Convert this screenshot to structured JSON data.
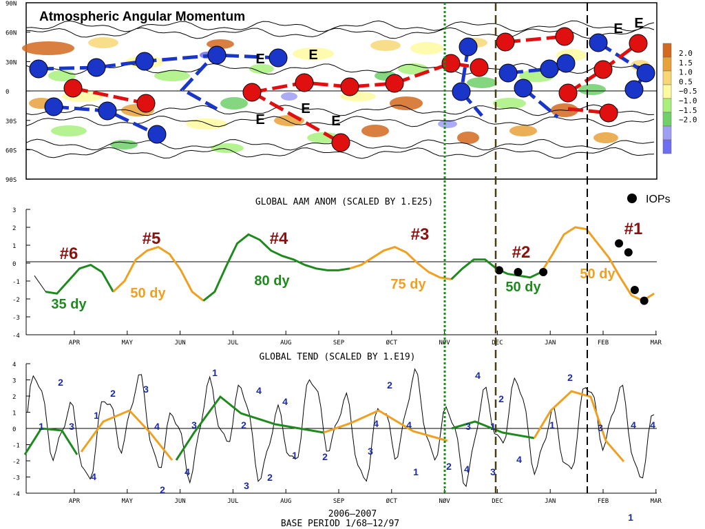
{
  "chart_data": [
    {
      "type": "heatmap",
      "title": "Atmospheric Angular Momentum",
      "ylabels": [
        "90N",
        "60N",
        "30N",
        "0",
        "30S",
        "60S",
        "90S"
      ],
      "colorbar": {
        "labels": [
          "2.0",
          "1.5",
          "1.0",
          "0.5",
          "−0.5",
          "−1.0",
          "−1.5",
          "−2.0"
        ],
        "colors": [
          "#d2691e",
          "#e8a23a",
          "#f7d775",
          "#fffaa0",
          "#a8f07c",
          "#6fd06a",
          "#9e9ef2",
          "#6e6ef0"
        ]
      },
      "easterly_marker": "E",
      "red_color": "#e01010",
      "blue_color": "#1a36c8",
      "legend_label": "IOPs"
    },
    {
      "type": "line",
      "title": "GLOBAL AAM ANOM (SCALED BY 1.E25)",
      "months": [
        "APR",
        "MAY",
        "JUN",
        "JUL",
        "AUG",
        "SEP",
        "ØCT",
        "NØV",
        "DEC",
        "JAN",
        "FEB",
        "MAR"
      ],
      "yticks": [
        "3",
        "2",
        "1",
        "0",
        "-1",
        "-2",
        "-3",
        "-4"
      ],
      "ylim": [
        -4,
        3
      ],
      "series": [
        {
          "values": [
            -0.7,
            -1.6,
            -1.7,
            -1.0,
            -0.3,
            -0.1,
            -0.5,
            -1.6,
            -1.0,
            0.2,
            0.7,
            0.9,
            0.5,
            -0.4,
            -1.6,
            -2.1,
            -1.6,
            -0.2,
            1.1,
            1.6,
            1.3,
            0.7,
            0.4,
            0.2,
            -0.1,
            -0.3,
            -0.4,
            -0.4,
            -0.3,
            -0.1,
            0.3,
            0.7,
            0.9,
            0.6,
            0.0,
            -0.5,
            -0.8,
            -0.9,
            -0.3,
            0.2,
            0.2,
            -0.3,
            -0.6,
            -0.7,
            -0.8,
            -0.5,
            0.5,
            1.6,
            2.0,
            1.9,
            1.1,
            0.3,
            -0.8,
            -1.8,
            -2.1,
            -1.7
          ]
        }
      ],
      "cycles": [
        {
          "label": "#6",
          "period": "35 dy",
          "color": "#1e8a1e"
        },
        {
          "label": "#5",
          "period": "50 dy",
          "color": "#f0a020"
        },
        {
          "label": "#4",
          "period": "80 dy",
          "color": "#1e8a1e"
        },
        {
          "label": "#3",
          "period": "75 dy",
          "color": "#f0a020"
        },
        {
          "label": "#2",
          "period": "50 dy",
          "color": "#1e8a1e"
        },
        {
          "label": "#1",
          "period": "50 dy",
          "color": "#f0a020"
        }
      ],
      "label_color": "#8b1010",
      "iops": [
        [
          0.75,
          -0.4
        ],
        [
          0.78,
          -0.5
        ],
        [
          0.82,
          -0.5
        ],
        [
          0.94,
          1.1
        ],
        [
          0.955,
          0.6
        ],
        [
          0.965,
          -1.5
        ],
        [
          0.98,
          -2.1
        ]
      ]
    },
    {
      "type": "line",
      "title": "GLOBAL TEND (SCALED BY 1.E19)",
      "months": [
        "APR",
        "MAY",
        "JUN",
        "JUL",
        "AUG",
        "SEP",
        "ØCT",
        "NØV",
        "DEC",
        "JAN",
        "FEB",
        "MAR"
      ],
      "yticks": [
        "4",
        "3",
        "2",
        "1",
        "0",
        "-1",
        "-2",
        "-3",
        "-4"
      ],
      "ylim": [
        -4,
        4
      ],
      "phase_labels": [
        "1",
        "2",
        "3",
        "4",
        "1",
        "2",
        "3",
        "4",
        "2",
        "3",
        "4",
        "1",
        "2",
        "3",
        "4",
        "2",
        "4",
        "1",
        "2",
        "3",
        "4",
        "2",
        "4",
        "1",
        "2",
        "3",
        "4",
        "4",
        "1",
        "2",
        "3",
        "4",
        "1",
        "2",
        "3",
        "4",
        "1",
        "4",
        "1"
      ],
      "phase_color": "#1a2aa8",
      "xlabel": "2006—2007",
      "footer": "BASE PERIOD 1/68—12/97"
    }
  ]
}
